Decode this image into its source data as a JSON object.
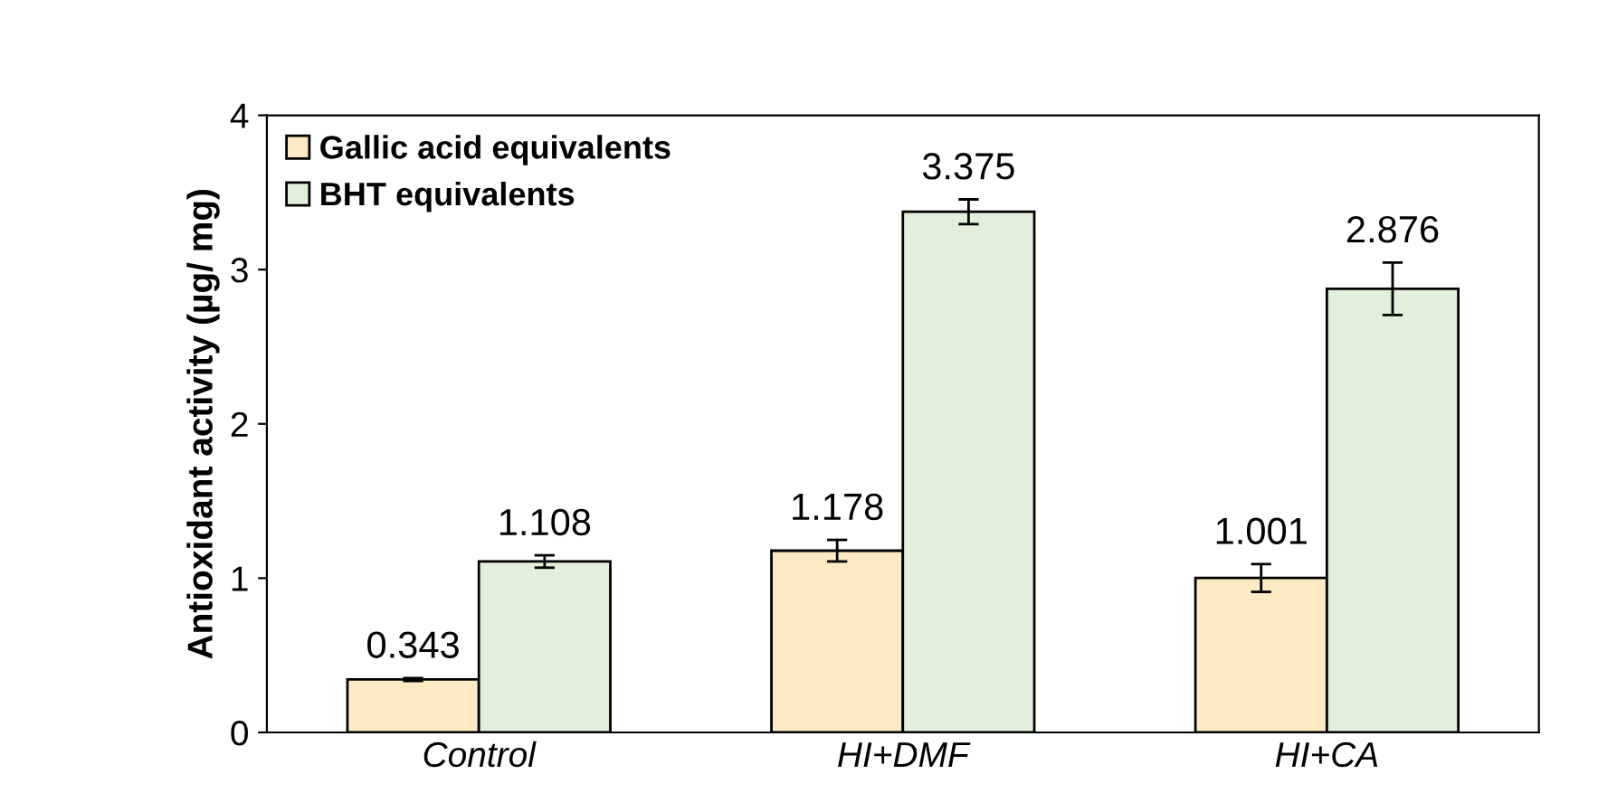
{
  "chart_data": {
    "type": "bar",
    "ylabel": "Antioxidant activity (µg/ mg)",
    "categories": [
      "Control",
      "HI+DMF",
      "HI+CA"
    ],
    "series": [
      {
        "name": "Gallic acid equivalents",
        "color": "#fde9c4",
        "values": [
          0.343,
          1.178,
          1.001
        ],
        "errors": [
          0.01,
          0.07,
          0.09
        ]
      },
      {
        "name": "BHT equivalents",
        "color": "#e2efda",
        "values": [
          1.108,
          3.375,
          2.876
        ],
        "errors": [
          0.04,
          0.08,
          0.17
        ]
      }
    ],
    "ylim": [
      0,
      4
    ],
    "yticks": [
      0,
      1,
      2,
      3,
      4
    ],
    "grid": false,
    "legend": "top left",
    "data_labels": true
  }
}
